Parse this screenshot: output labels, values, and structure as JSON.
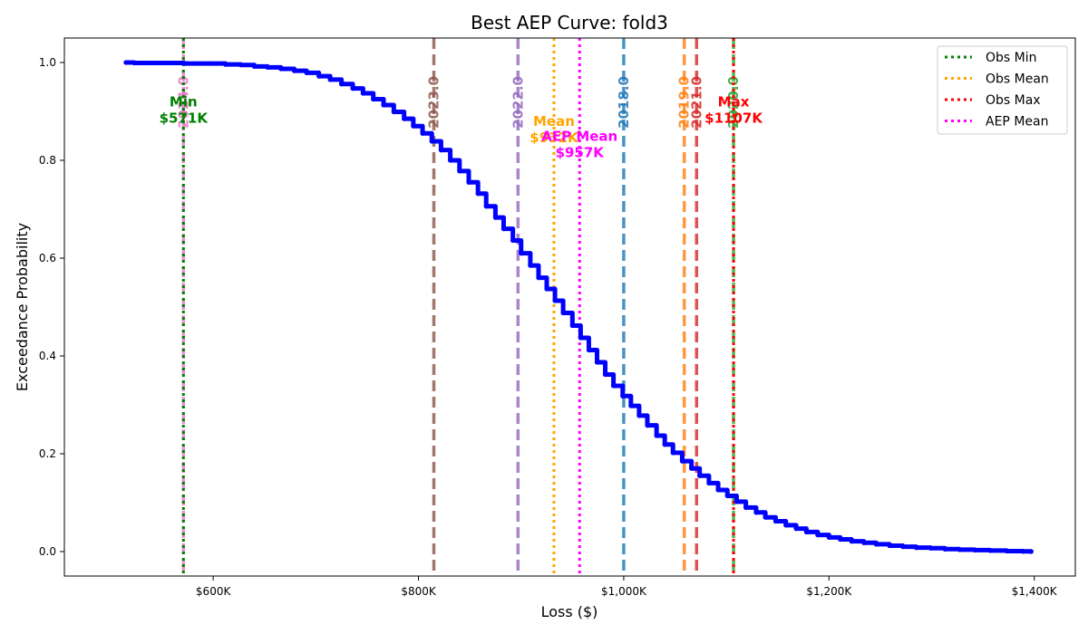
{
  "chart_data": {
    "type": "line",
    "title": "Best AEP Curve: fold3",
    "xlabel": "Loss ($)",
    "ylabel": "Exceedance Probability",
    "xlim": [
      455000,
      1440000
    ],
    "ylim": [
      -0.05,
      1.05
    ],
    "x_ticks": [
      {
        "value": 600000,
        "label": "$600K"
      },
      {
        "value": 800000,
        "label": "$800K"
      },
      {
        "value": 1000000,
        "label": "$1,000K"
      },
      {
        "value": 1200000,
        "label": "$1,200K"
      },
      {
        "value": 1400000,
        "label": "$1,400K"
      }
    ],
    "y_ticks": [
      {
        "value": 0.0,
        "label": "0.0"
      },
      {
        "value": 0.2,
        "label": "0.2"
      },
      {
        "value": 0.4,
        "label": "0.4"
      },
      {
        "value": 0.6,
        "label": "0.6"
      },
      {
        "value": 0.8,
        "label": "0.8"
      },
      {
        "value": 1.0,
        "label": "1.0"
      }
    ],
    "grid": false,
    "legend_position": "top-right",
    "series": [
      {
        "name": "AEP curve",
        "color": "#0000ff",
        "x": [
          515000,
          523000,
          548000,
          572000,
          597000,
          612000,
          627000,
          640000,
          653000,
          666000,
          679000,
          691000,
          703000,
          714000,
          725000,
          736000,
          746000,
          756000,
          766000,
          776000,
          786000,
          795000,
          804000,
          813000,
          822000,
          831000,
          840000,
          849000,
          858000,
          866000,
          875000,
          883000,
          892000,
          900000,
          909000,
          917000,
          925000,
          933000,
          941000,
          950000,
          958000,
          966000,
          974000,
          982000,
          990000,
          999000,
          1007000,
          1015000,
          1023000,
          1032000,
          1040000,
          1048000,
          1057000,
          1066000,
          1074000,
          1083000,
          1092000,
          1101000,
          1110000,
          1119000,
          1129000,
          1138000,
          1148000,
          1158000,
          1168000,
          1178000,
          1189000,
          1200000,
          1211000,
          1222000,
          1234000,
          1246000,
          1259000,
          1272000,
          1285000,
          1299000,
          1313000,
          1327000,
          1342000,
          1357000,
          1373000,
          1389000,
          1397000
        ],
        "y": [
          1.0,
          0.999,
          0.999,
          0.998,
          0.998,
          0.996,
          0.995,
          0.992,
          0.99,
          0.987,
          0.983,
          0.979,
          0.972,
          0.965,
          0.956,
          0.947,
          0.937,
          0.925,
          0.913,
          0.899,
          0.885,
          0.87,
          0.855,
          0.839,
          0.821,
          0.8,
          0.778,
          0.755,
          0.732,
          0.706,
          0.683,
          0.66,
          0.636,
          0.61,
          0.585,
          0.56,
          0.537,
          0.513,
          0.488,
          0.462,
          0.437,
          0.412,
          0.387,
          0.362,
          0.339,
          0.318,
          0.298,
          0.278,
          0.258,
          0.237,
          0.219,
          0.202,
          0.185,
          0.17,
          0.155,
          0.14,
          0.126,
          0.114,
          0.102,
          0.09,
          0.08,
          0.07,
          0.062,
          0.054,
          0.047,
          0.04,
          0.034,
          0.029,
          0.025,
          0.021,
          0.018,
          0.015,
          0.012,
          0.01,
          0.008,
          0.007,
          0.005,
          0.004,
          0.003,
          0.002,
          0.001,
          0.0005,
          0.0
        ]
      }
    ],
    "year_lines": [
      {
        "year": "2024.0",
        "x": 571000,
        "color": "#e377c2"
      },
      {
        "year": "2023.0",
        "x": 815000,
        "color": "#8c564b"
      },
      {
        "year": "2022.0",
        "x": 897000,
        "color": "#9467bd"
      },
      {
        "year": "2018.0",
        "x": 1000000,
        "color": "#1f77b4"
      },
      {
        "year": "2019.0",
        "x": 1059000,
        "color": "#ff7f0e"
      },
      {
        "year": "2021.0",
        "x": 1071000,
        "color": "#d62728"
      },
      {
        "year": "2020.0",
        "x": 1107000,
        "color": "#2ca02c"
      }
    ],
    "ref_lines": [
      {
        "name": "Obs Min",
        "x": 571000,
        "color": "#008000",
        "label": "Min",
        "value_label": "$571K",
        "label_y": 0.91
      },
      {
        "name": "Obs Mean",
        "x": 932000,
        "color": "#ffa500",
        "label": "Mean",
        "value_label": "$932K",
        "label_y": 0.87
      },
      {
        "name": "Obs Max",
        "x": 1107000,
        "color": "#ff0000",
        "label": "Max",
        "value_label": "$1107K",
        "label_y": 0.91
      },
      {
        "name": "AEP Mean",
        "x": 957000,
        "color": "#ff00ff",
        "label": "AEP Mean",
        "value_label": "$957K",
        "label_y": 0.84
      }
    ]
  }
}
